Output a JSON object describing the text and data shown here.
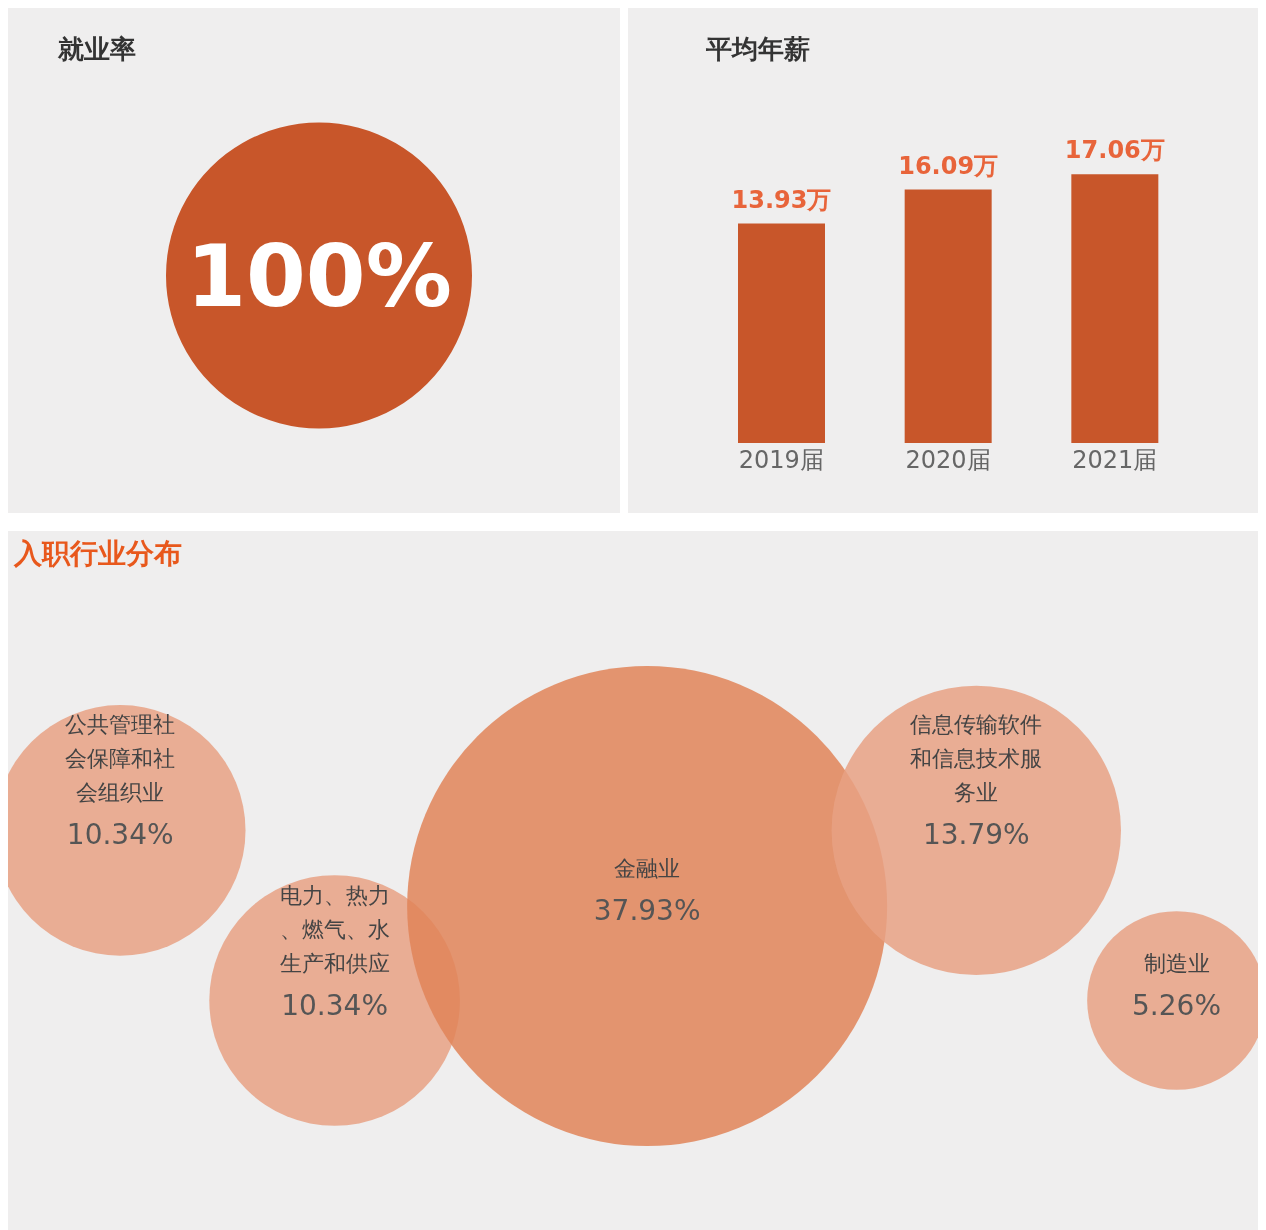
{
  "chart_data": [
    {
      "type": "pie",
      "title": "就业率",
      "categories": [
        null
      ],
      "values": [
        100
      ],
      "value_labels": [
        "100%"
      ],
      "colors": [
        "#c8562a"
      ]
    },
    {
      "type": "bar",
      "title": "平均年薪",
      "categories": [
        "2019届",
        "2020届",
        "2021届"
      ],
      "values": [
        13.93,
        16.09,
        17.06
      ],
      "value_labels": [
        "13.93万",
        "16.09万",
        "17.06万"
      ],
      "color": "#c8562a"
    },
    {
      "type": "other",
      "title": "入职行业分布",
      "categories": [
        "公共管理社会保障和社会组织业",
        "电力、热力、燃气、水生产和供应",
        "金融业",
        "信息传输软件和信息技术服务业",
        "制造业"
      ],
      "values": [
        10.34,
        10.34,
        37.93,
        13.79,
        5.26
      ],
      "value_labels": [
        "10.34%",
        "10.34%",
        "37.93%",
        "13.79%",
        "5.26%"
      ],
      "colors": [
        "#e8a184",
        "#e8a184",
        "#e08458",
        "#e8a184",
        "#e8a184"
      ]
    }
  ]
}
